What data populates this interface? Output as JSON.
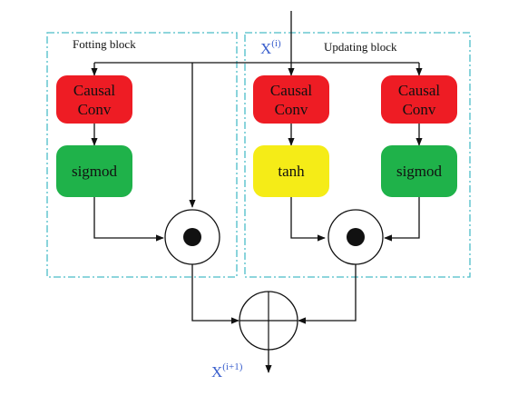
{
  "diagram": {
    "left_block_label": "Fotting block",
    "right_block_label": "Updating block",
    "input_label": {
      "base": "X",
      "sup": "(i)"
    },
    "output_label": {
      "base": "X",
      "sup": "(i+1)"
    },
    "nodes": {
      "causal_conv_left": {
        "line1": "Causal",
        "line2": "Conv"
      },
      "sigmoid_left": "sigmod",
      "causal_conv_mid": {
        "line1": "Causal",
        "line2": "Conv"
      },
      "tanh_mid": "tanh",
      "causal_conv_right": {
        "line1": "Causal",
        "line2": "Conv"
      },
      "sigmoid_right": "sigmod"
    },
    "colors": {
      "conv_fill": "#ee1c24",
      "sigmoid_fill": "#1fb24a",
      "tanh_fill": "#f5ec17",
      "block_border": "#4bbcc8",
      "label_blue": "#3a5fcd",
      "line": "#111111"
    }
  }
}
